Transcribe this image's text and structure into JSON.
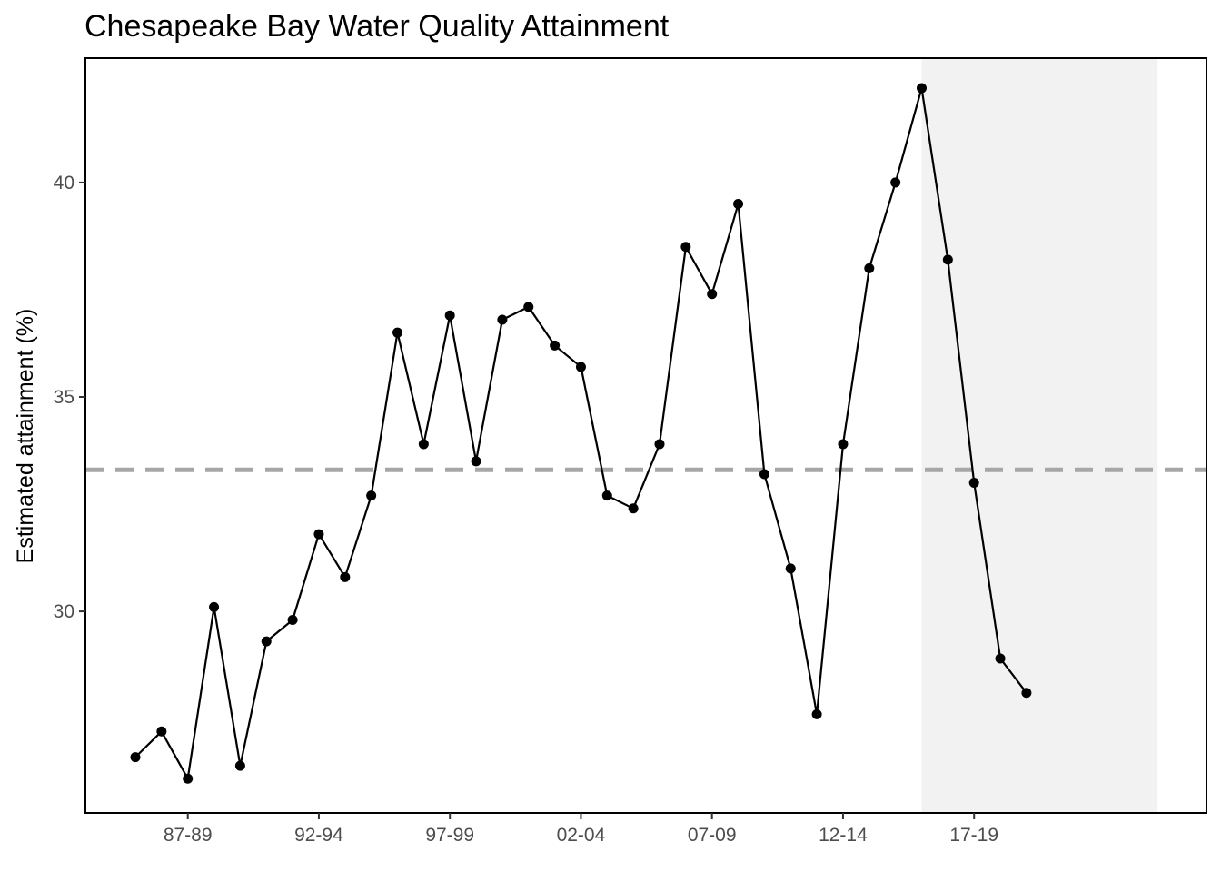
{
  "chart_data": {
    "type": "line",
    "title": "Chesapeake Bay Water Quality Attainment",
    "xlabel": "",
    "ylabel": "Estimated attainment (%)",
    "x_tick_labels": [
      "87-89",
      "92-94",
      "97-99",
      "02-04",
      "07-09",
      "12-14",
      "17-19"
    ],
    "y_ticks": [
      30,
      35,
      40
    ],
    "ylim": [
      25.3,
      42.9
    ],
    "x": [
      "85-87",
      "86-88",
      "87-89",
      "88-90",
      "89-91",
      "90-92",
      "91-93",
      "92-94",
      "93-95",
      "94-96",
      "95-97",
      "96-98",
      "97-99",
      "98-00",
      "99-01",
      "00-02",
      "01-03",
      "02-04",
      "03-05",
      "04-06",
      "05-07",
      "06-08",
      "07-09",
      "08-10",
      "09-11",
      "10-12",
      "11-13",
      "12-14",
      "13-15",
      "14-16",
      "15-17",
      "16-18",
      "17-19",
      "18-20",
      "19-21"
    ],
    "series": [
      {
        "values": [
          26.6,
          27.2,
          26.1,
          30.1,
          26.4,
          29.3,
          29.8,
          31.8,
          30.8,
          32.7,
          36.5,
          33.9,
          36.9,
          33.5,
          36.8,
          37.1,
          36.2,
          35.7,
          32.7,
          32.4,
          33.9,
          38.5,
          37.4,
          39.5,
          33.2,
          31.0,
          27.6,
          33.9,
          38.0,
          40.0,
          42.2,
          38.2,
          33.0,
          28.9,
          28.1
        ]
      }
    ],
    "reference_line": {
      "value": 33.3,
      "style": "dashed",
      "color": "#a6a6a6"
    },
    "highlight_band": {
      "from_index": 30,
      "to_index": 39,
      "color": "#f2f2f2"
    },
    "line_color": "#000000",
    "grid": false,
    "legend": "none"
  }
}
